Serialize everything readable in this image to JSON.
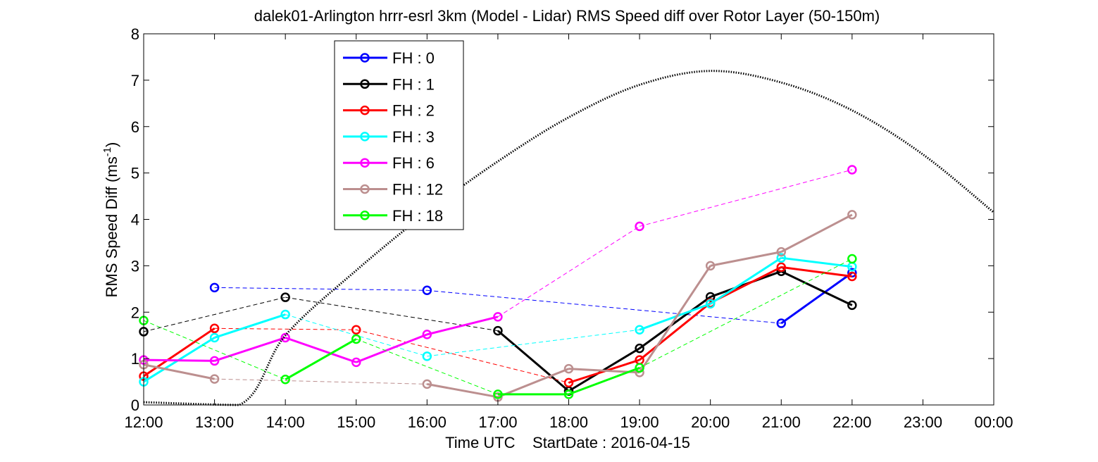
{
  "chart_data": {
    "type": "line",
    "title": "dalek01-Arlington hrrr-esrl 3km (Model - Lidar) RMS Speed diff over Rotor Layer (50-150m)",
    "xlabel": "Time UTC    StartDate : 2016-04-15",
    "ylabel_main": "RMS Speed Diff (ms",
    "ylabel_sup": "-1",
    "ylabel_close": ")",
    "xlim": [
      12,
      24
    ],
    "ylim": [
      0,
      8
    ],
    "x_ticks": [
      12,
      13,
      14,
      15,
      16,
      17,
      18,
      19,
      20,
      21,
      22,
      23,
      24
    ],
    "x_tick_labels": [
      "12:00",
      "13:00",
      "14:00",
      "15:00",
      "16:00",
      "17:00",
      "18:00",
      "19:00",
      "20:00",
      "21:00",
      "22:00",
      "23:00",
      "00:00"
    ],
    "y_ticks": [
      0,
      1,
      2,
      3,
      4,
      5,
      6,
      7,
      8
    ],
    "y_tick_labels": [
      "0",
      "1",
      "2",
      "3",
      "4",
      "5",
      "6",
      "7",
      "8"
    ],
    "grid": false,
    "legend_position": "top-left",
    "series": [
      {
        "name": "FH : 0",
        "color": "#0000ff",
        "points": [
          [
            13,
            2.53
          ],
          [
            16,
            2.47
          ],
          [
            21,
            1.76
          ],
          [
            22,
            2.85
          ]
        ]
      },
      {
        "name": "FH : 1",
        "color": "#000000",
        "points": [
          [
            12,
            1.58
          ],
          [
            14,
            2.32
          ],
          [
            17,
            1.6
          ],
          [
            18,
            0.3
          ],
          [
            19,
            1.22
          ],
          [
            20,
            2.33
          ],
          [
            21,
            2.88
          ],
          [
            22,
            2.15
          ]
        ]
      },
      {
        "name": "FH : 2",
        "color": "#ff0000",
        "points": [
          [
            12,
            0.62
          ],
          [
            13,
            1.65
          ],
          [
            15,
            1.62
          ],
          [
            18,
            0.48
          ],
          [
            19,
            0.97
          ],
          [
            20,
            2.2
          ],
          [
            21,
            2.97
          ],
          [
            22,
            2.77
          ]
        ]
      },
      {
        "name": "FH : 3",
        "color": "#00ffff",
        "points": [
          [
            12,
            0.5
          ],
          [
            13,
            1.45
          ],
          [
            14,
            1.95
          ],
          [
            16,
            1.05
          ],
          [
            19,
            1.62
          ],
          [
            20,
            2.18
          ],
          [
            21,
            3.17
          ],
          [
            22,
            2.98
          ]
        ]
      },
      {
        "name": "FH : 6",
        "color": "#ff00ff",
        "points": [
          [
            12,
            0.97
          ],
          [
            13,
            0.95
          ],
          [
            14,
            1.45
          ],
          [
            15,
            0.92
          ],
          [
            16,
            1.52
          ],
          [
            17,
            1.9
          ],
          [
            19,
            3.85
          ],
          [
            22,
            5.07
          ]
        ]
      },
      {
        "name": "FH : 12",
        "color": "#bc8f8f",
        "points": [
          [
            12,
            0.87
          ],
          [
            13,
            0.56
          ],
          [
            16,
            0.45
          ],
          [
            17,
            0.17
          ],
          [
            18,
            0.78
          ],
          [
            19,
            0.7
          ],
          [
            20,
            3.0
          ],
          [
            21,
            3.3
          ],
          [
            22,
            4.1
          ]
        ]
      },
      {
        "name": "FH : 18",
        "color": "#00ff00",
        "points": [
          [
            12,
            1.82
          ],
          [
            14,
            0.55
          ],
          [
            15,
            1.42
          ],
          [
            17,
            0.23
          ],
          [
            18,
            0.23
          ],
          [
            19,
            0.8
          ],
          [
            22,
            3.15
          ]
        ]
      }
    ],
    "reference_curve": {
      "style": "dotted",
      "color": "#000000",
      "points": [
        [
          12,
          0.06
        ],
        [
          13.35,
          0
        ],
        [
          14,
          1.5
        ],
        [
          15,
          2.9
        ],
        [
          16,
          4.15
        ],
        [
          17,
          5.25
        ],
        [
          18,
          6.2
        ],
        [
          19,
          6.9
        ],
        [
          20,
          7.2
        ],
        [
          21,
          6.95
        ],
        [
          22,
          6.35
        ],
        [
          23,
          5.4
        ],
        [
          24,
          4.15
        ]
      ]
    }
  }
}
